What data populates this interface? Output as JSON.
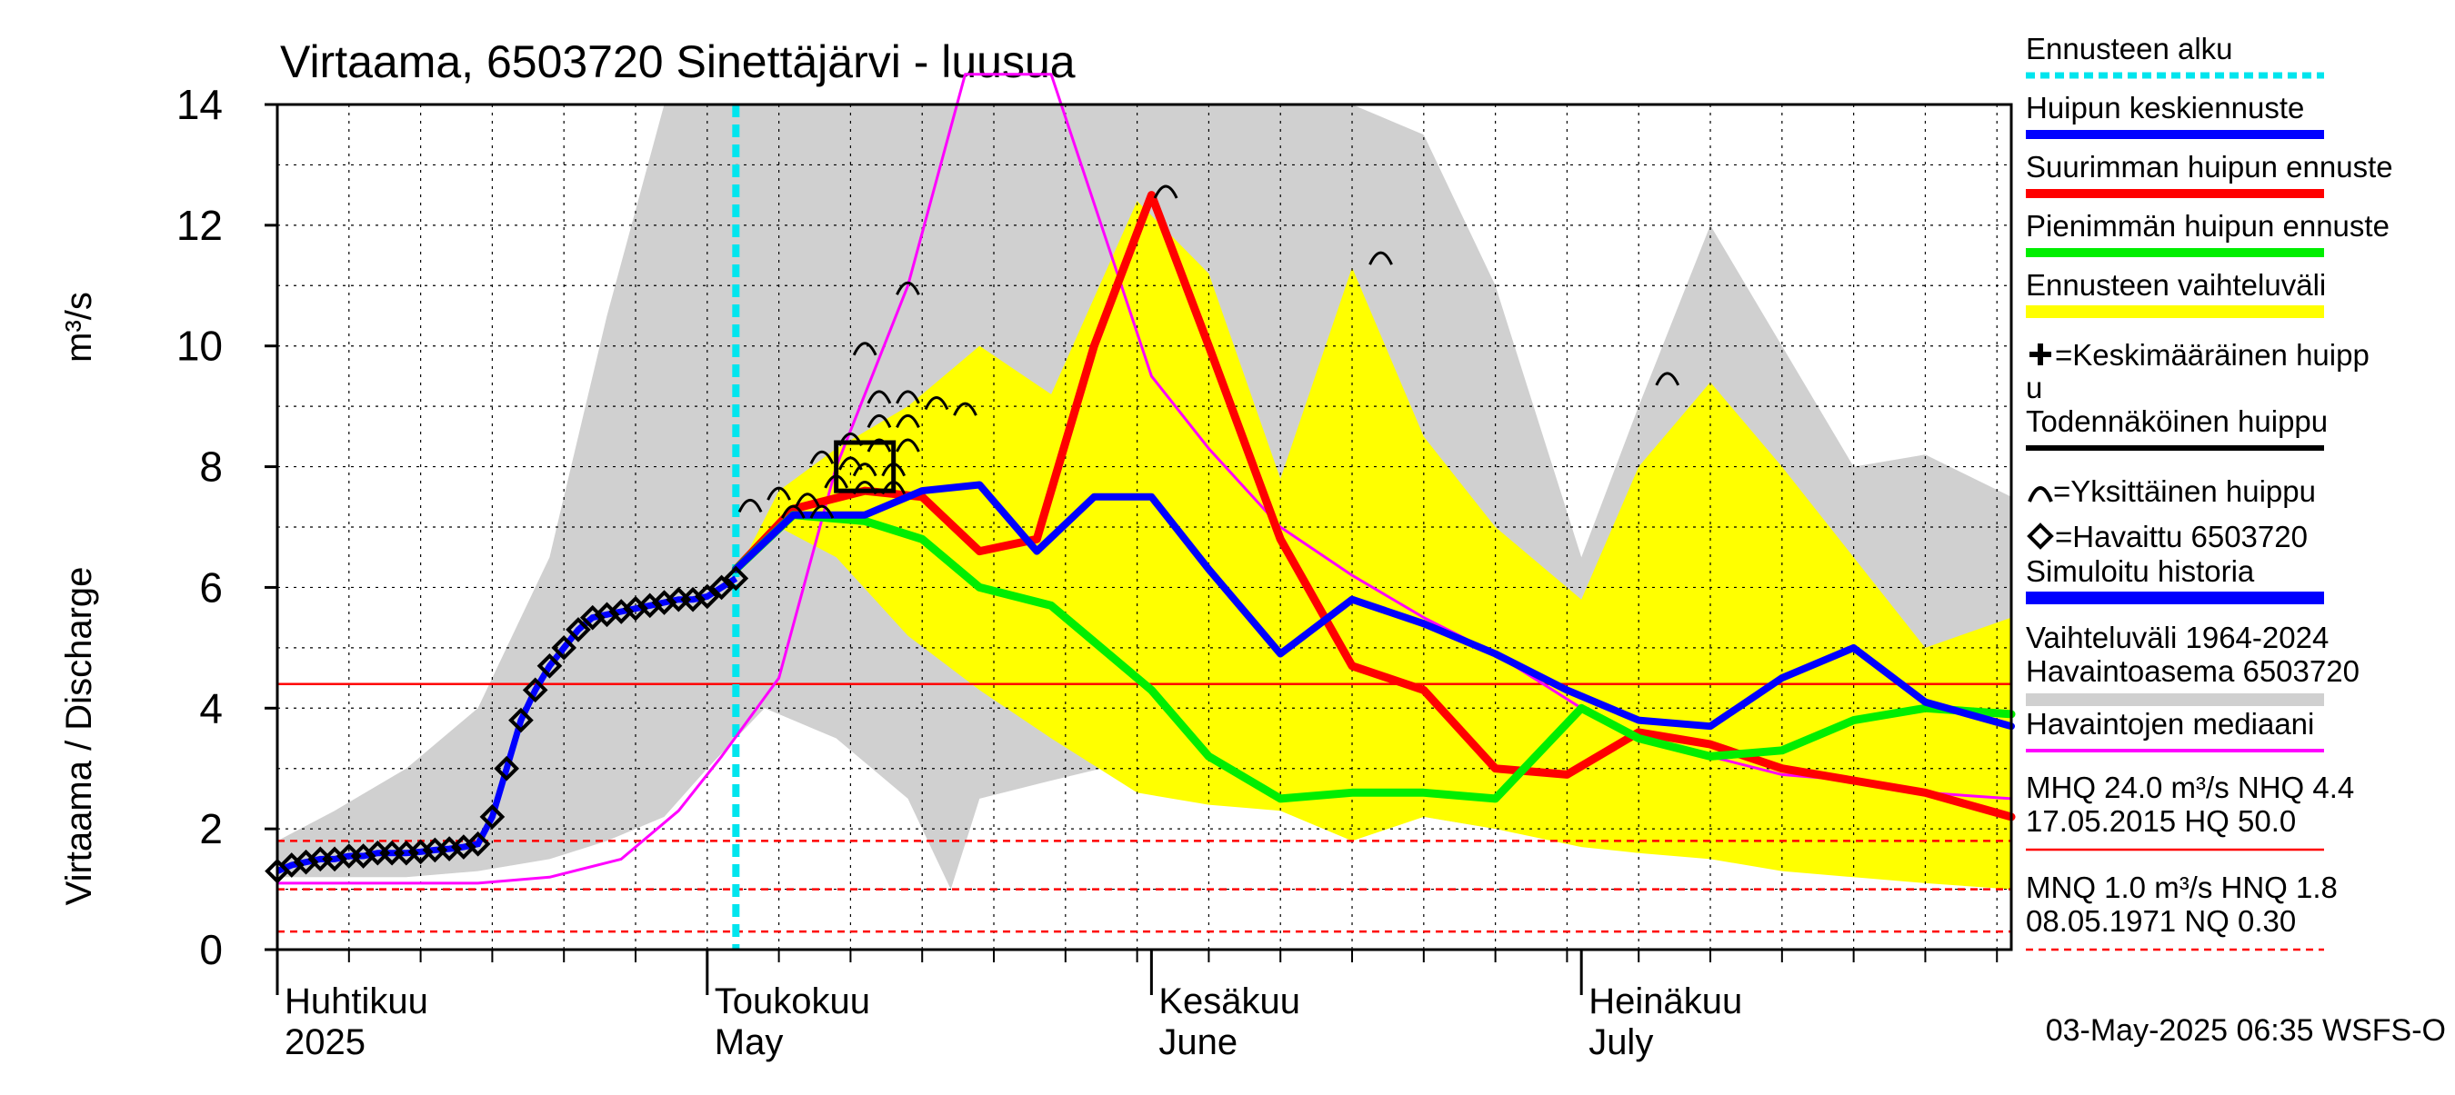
{
  "chart_data": {
    "type": "line",
    "title": "Virtaama, 6503720 Sinettäjärvi - luusua",
    "ylabel_fi": "Virtaama / Discharge",
    "ylabel_unit": "m³/s",
    "ylim": [
      0,
      14
    ],
    "yticks": [
      "0",
      "2",
      "4",
      "6",
      "8",
      "10",
      "12",
      "14"
    ],
    "x_start": "2025-04-01",
    "x_end": "2025-07-31",
    "month_labels": [
      {
        "fi": "Huhtikuu",
        "en": "2025",
        "date": "2025-04-01"
      },
      {
        "fi": "Toukokuu",
        "en": "May",
        "date": "2025-05-01"
      },
      {
        "fi": "Kesäkuu",
        "en": "June",
        "date": "2025-06-01"
      },
      {
        "fi": "Heinäkuu",
        "en": "July",
        "date": "2025-07-01"
      }
    ],
    "forecast_start": "2025-05-03",
    "grid": true,
    "legend_position": "right",
    "colors": {
      "forecast_start": "#00e5ee",
      "mean_forecast": "#0000ff",
      "max_forecast": "#ff0000",
      "min_forecast": "#00ee00",
      "forecast_range": "#ffff00",
      "historic_range": "#d0d0d0",
      "median": "#ff00ff",
      "ref_lines": "#ff0000",
      "observed": "#000000"
    },
    "legend": {
      "forecast_start": "Ennusteen alku",
      "mean_forecast": "Huipun keskiennuste",
      "max_forecast": "Suurimman huipun ennuste",
      "min_forecast": "Pienimmän huipun ennuste",
      "forecast_range": "Ennusteen vaihteluväli",
      "mean_peak_1": "=Keskimääräinen huipp",
      "mean_peak_2": "u",
      "probable_peak": "Todennäköinen huippu",
      "single_peak": "=Yksittäinen huippu",
      "observed": "=Havaittu 6503720",
      "simulated": "Simuloitu historia",
      "range_1": "Vaihteluväli 1964-2024",
      "range_2": " Havaintoasema 6503720",
      "median": "Havaintojen mediaani",
      "mhq_1": "MHQ 24.0 m³/s NHQ  4.4",
      "mhq_2": "17.05.2015 HQ 50.0",
      "mnq_1": "MNQ  1.0 m³/s HNQ  1.8",
      "mnq_2": "08.05.1971 NQ 0.30"
    },
    "reference_lines": [
      {
        "name": "NHQ",
        "value": 4.4,
        "style": "solid"
      },
      {
        "name": "HNQ",
        "value": 1.8,
        "style": "dashed"
      },
      {
        "name": "MNQ",
        "value": 1.0,
        "style": "dashed"
      },
      {
        "name": "NQ",
        "value": 0.3,
        "style": "dashed"
      }
    ],
    "historic_range": {
      "x": [
        "2025-04-01",
        "2025-04-05",
        "2025-04-10",
        "2025-04-15",
        "2025-04-20",
        "2025-04-24",
        "2025-04-28",
        "2025-05-01",
        "2025-05-05",
        "2025-05-10",
        "2025-05-15",
        "2025-05-18",
        "2025-05-20",
        "2025-05-25",
        "2025-06-01",
        "2025-06-05",
        "2025-06-10",
        "2025-06-15",
        "2025-06-20",
        "2025-06-25",
        "2025-07-01",
        "2025-07-05",
        "2025-07-10",
        "2025-07-15",
        "2025-07-20",
        "2025-07-25",
        "2025-07-31"
      ],
      "upper": [
        1.8,
        2.3,
        3.0,
        4.0,
        6.5,
        10.5,
        14,
        14,
        14,
        14,
        14,
        14,
        14,
        14,
        14,
        14,
        14,
        14,
        13.5,
        11,
        6.5,
        9,
        12,
        10,
        8,
        8.2,
        7.5
      ],
      "lower": [
        1.2,
        1.2,
        1.2,
        1.3,
        1.5,
        1.8,
        2.2,
        3.0,
        4.0,
        3.5,
        2.5,
        1.0,
        2.5,
        2.8,
        3.2,
        3.0,
        2.5,
        2.0,
        2.2,
        2.0,
        2.0,
        1.8,
        1.6,
        1.5,
        1.4,
        1.3,
        1.2
      ]
    },
    "forecast_range": {
      "x": [
        "2025-05-03",
        "2025-05-06",
        "2025-05-10",
        "2025-05-15",
        "2025-05-20",
        "2025-05-25",
        "2025-05-31",
        "2025-06-05",
        "2025-06-10",
        "2025-06-15",
        "2025-06-20",
        "2025-06-25",
        "2025-07-01",
        "2025-07-05",
        "2025-07-10",
        "2025-07-15",
        "2025-07-20",
        "2025-07-25",
        "2025-07-31"
      ],
      "upper": [
        6.2,
        7.6,
        8.3,
        9.0,
        10.0,
        9.2,
        12.4,
        11.2,
        7.8,
        11.3,
        8.5,
        7.0,
        5.8,
        8.0,
        9.4,
        8.0,
        6.5,
        5.0,
        5.5
      ],
      "lower": [
        6.2,
        7.0,
        6.5,
        5.2,
        4.3,
        3.5,
        2.6,
        2.4,
        2.3,
        1.8,
        2.2,
        2.0,
        1.7,
        1.6,
        1.5,
        1.3,
        1.2,
        1.1,
        1.0
      ]
    },
    "series": [
      {
        "name": "Havaintojen mediaani",
        "key": "median",
        "x": [
          "2025-04-01",
          "2025-04-10",
          "2025-04-15",
          "2025-04-20",
          "2025-04-25",
          "2025-04-29",
          "2025-05-02",
          "2025-05-06",
          "2025-05-10",
          "2025-05-15",
          "2025-05-19",
          "2025-05-25",
          "2025-06-01",
          "2025-06-05",
          "2025-06-10",
          "2025-06-15",
          "2025-06-20",
          "2025-06-25",
          "2025-07-01",
          "2025-07-05",
          "2025-07-10",
          "2025-07-15",
          "2025-07-20",
          "2025-07-25",
          "2025-07-31"
        ],
        "values": [
          1.1,
          1.1,
          1.1,
          1.2,
          1.5,
          2.3,
          3.2,
          4.5,
          8.0,
          11.0,
          14.5,
          14.5,
          9.5,
          8.3,
          7.0,
          6.2,
          5.5,
          4.9,
          4.0,
          3.5,
          3.2,
          2.9,
          2.8,
          2.6,
          2.5
        ]
      },
      {
        "name": "Suurimman huipun ennuste",
        "key": "max_forecast",
        "x": [
          "2025-05-03",
          "2025-05-07",
          "2025-05-12",
          "2025-05-16",
          "2025-05-20",
          "2025-05-24",
          "2025-05-28",
          "2025-06-01",
          "2025-06-05",
          "2025-06-10",
          "2025-06-15",
          "2025-06-20",
          "2025-06-25",
          "2025-06-30",
          "2025-07-05",
          "2025-07-10",
          "2025-07-15",
          "2025-07-20",
          "2025-07-25",
          "2025-07-31"
        ],
        "values": [
          6.3,
          7.3,
          7.6,
          7.5,
          6.6,
          6.8,
          10.0,
          12.5,
          10.0,
          6.8,
          4.7,
          4.3,
          3.0,
          2.9,
          3.6,
          3.4,
          3.0,
          2.8,
          2.6,
          2.2
        ]
      },
      {
        "name": "Pienimmän huipun ennuste",
        "key": "min_forecast",
        "x": [
          "2025-05-03",
          "2025-05-07",
          "2025-05-12",
          "2025-05-16",
          "2025-05-20",
          "2025-05-25",
          "2025-06-01",
          "2025-06-05",
          "2025-06-10",
          "2025-06-15",
          "2025-06-20",
          "2025-06-25",
          "2025-07-01",
          "2025-07-05",
          "2025-07-10",
          "2025-07-15",
          "2025-07-20",
          "2025-07-25",
          "2025-07-31"
        ],
        "values": [
          6.3,
          7.2,
          7.1,
          6.8,
          6.0,
          5.7,
          4.3,
          3.2,
          2.5,
          2.6,
          2.6,
          2.5,
          4.0,
          3.5,
          3.2,
          3.3,
          3.8,
          4.0,
          3.9
        ]
      },
      {
        "name": "Huipun keskiennuste",
        "key": "mean_forecast",
        "x": [
          "2025-05-03",
          "2025-05-07",
          "2025-05-12",
          "2025-05-16",
          "2025-05-20",
          "2025-05-24",
          "2025-05-28",
          "2025-06-01",
          "2025-06-05",
          "2025-06-10",
          "2025-06-15",
          "2025-06-20",
          "2025-06-25",
          "2025-06-30",
          "2025-07-05",
          "2025-07-10",
          "2025-07-15",
          "2025-07-20",
          "2025-07-25",
          "2025-07-31"
        ],
        "values": [
          6.3,
          7.2,
          7.2,
          7.6,
          7.7,
          6.6,
          7.5,
          7.5,
          6.3,
          4.9,
          5.8,
          5.4,
          4.9,
          4.3,
          3.8,
          3.7,
          4.5,
          5.0,
          4.1,
          3.7
        ]
      }
    ],
    "observed": {
      "x": [
        "2025-04-01",
        "2025-04-02",
        "2025-04-03",
        "2025-04-04",
        "2025-04-05",
        "2025-04-06",
        "2025-04-07",
        "2025-04-08",
        "2025-04-09",
        "2025-04-10",
        "2025-04-11",
        "2025-04-12",
        "2025-04-13",
        "2025-04-14",
        "2025-04-15",
        "2025-04-16",
        "2025-04-17",
        "2025-04-18",
        "2025-04-19",
        "2025-04-20",
        "2025-04-21",
        "2025-04-22",
        "2025-04-23",
        "2025-04-24",
        "2025-04-25",
        "2025-04-26",
        "2025-04-27",
        "2025-04-28",
        "2025-04-29",
        "2025-04-30",
        "2025-05-01",
        "2025-05-02",
        "2025-05-03"
      ],
      "values": [
        1.3,
        1.4,
        1.45,
        1.5,
        1.5,
        1.55,
        1.55,
        1.6,
        1.6,
        1.6,
        1.62,
        1.65,
        1.67,
        1.7,
        1.75,
        2.2,
        3.0,
        3.8,
        4.3,
        4.7,
        5.0,
        5.3,
        5.5,
        5.55,
        5.6,
        5.65,
        5.7,
        5.75,
        5.8,
        5.8,
        5.85,
        6.0,
        6.15
      ]
    },
    "single_peaks": [
      {
        "x": "2025-05-15",
        "y": 11.0
      },
      {
        "x": "2025-05-12",
        "y": 10.0
      },
      {
        "x": "2025-05-13",
        "y": 9.2
      },
      {
        "x": "2025-05-15",
        "y": 9.2
      },
      {
        "x": "2025-05-17",
        "y": 9.1
      },
      {
        "x": "2025-05-19",
        "y": 9.0
      },
      {
        "x": "2025-05-13",
        "y": 8.8
      },
      {
        "x": "2025-05-15",
        "y": 8.8
      },
      {
        "x": "2025-05-11",
        "y": 8.5
      },
      {
        "x": "2025-05-13",
        "y": 8.4
      },
      {
        "x": "2025-05-15",
        "y": 8.4
      },
      {
        "x": "2025-05-09",
        "y": 8.2
      },
      {
        "x": "2025-05-11",
        "y": 8.1
      },
      {
        "x": "2025-05-12",
        "y": 8.0
      },
      {
        "x": "2025-05-14",
        "y": 8.0
      },
      {
        "x": "2025-05-10",
        "y": 7.8
      },
      {
        "x": "2025-05-12",
        "y": 7.7
      },
      {
        "x": "2025-05-14",
        "y": 7.7
      },
      {
        "x": "2025-05-06",
        "y": 7.6
      },
      {
        "x": "2025-05-08",
        "y": 7.5
      },
      {
        "x": "2025-05-04",
        "y": 7.4
      },
      {
        "x": "2025-05-07",
        "y": 7.3
      },
      {
        "x": "2025-05-09",
        "y": 7.3
      },
      {
        "x": "2025-06-02",
        "y": 12.6
      },
      {
        "x": "2025-06-17",
        "y": 11.5
      },
      {
        "x": "2025-07-07",
        "y": 9.5
      }
    ],
    "probable_peak_box": {
      "x_start": "2025-05-10",
      "x_end": "2025-05-14",
      "y_low": 7.6,
      "y_high": 8.4
    },
    "timestamp": "03-May-2025 06:35 WSFS-O"
  }
}
